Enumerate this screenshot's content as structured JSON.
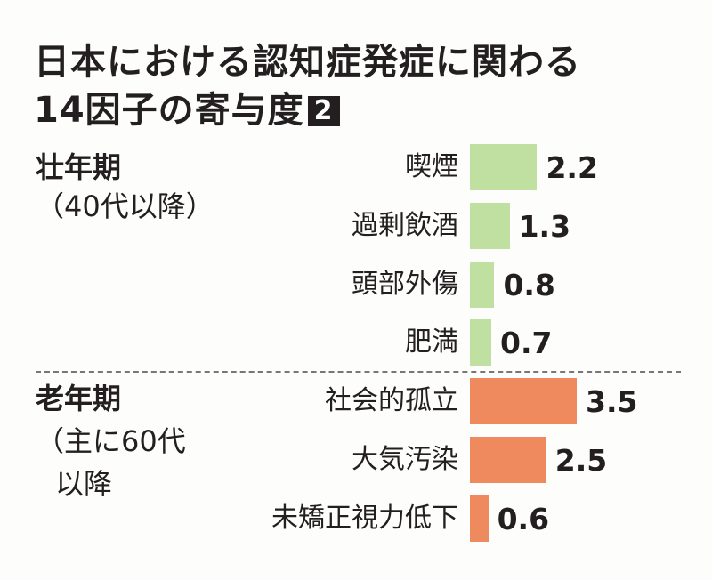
{
  "title_line1": "日本における認知症発症に関わる",
  "title_line2": "14因子の寄与度",
  "title_badge": "2",
  "colors": {
    "middle_age": "#bfe0a0",
    "old_age": "#ee8a5e"
  },
  "groups": [
    {
      "name": "壮年期",
      "sub": [
        "（40代以降）"
      ]
    },
    {
      "name": "老年期",
      "sub": [
        "（主に60代",
        "以降"
      ]
    }
  ],
  "chart_data": {
    "type": "bar",
    "orientation": "horizontal",
    "title": "日本における認知症発症に関わる14因子の寄与度",
    "categories": [
      "喫煙",
      "過剰飲酒",
      "頭部外傷",
      "肥満",
      "社会的孤立",
      "大気汚染",
      "未矯正視力低下"
    ],
    "values": [
      2.2,
      1.3,
      0.8,
      0.7,
      3.5,
      2.5,
      0.6
    ],
    "value_labels": [
      "2.2",
      "1.3",
      "0.8",
      "0.7",
      "3.5",
      "2.5",
      "0.6"
    ],
    "group_of": [
      0,
      0,
      0,
      0,
      1,
      1,
      1
    ],
    "xlim": [
      0,
      3.5
    ],
    "grid": false
  }
}
